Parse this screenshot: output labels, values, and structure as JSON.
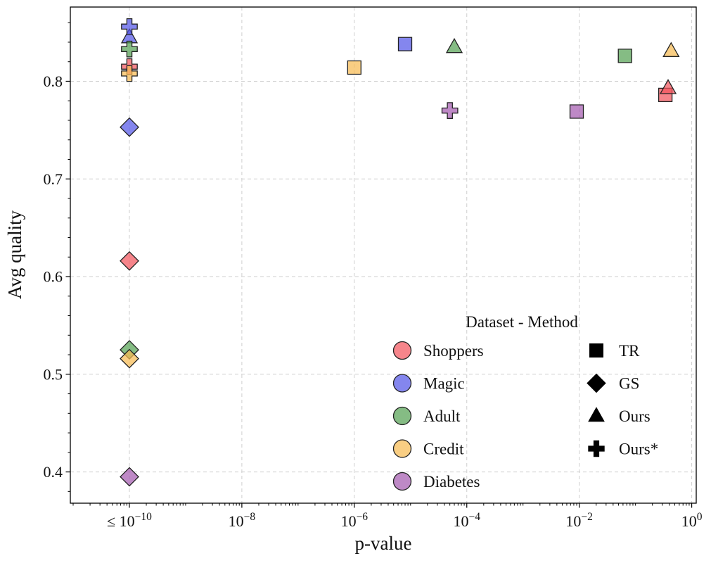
{
  "chart_data": {
    "type": "scatter",
    "title": "",
    "xlabel": "p-value",
    "ylabel": "Avg quality",
    "x_axis": {
      "scale": "log",
      "domain_log10": [
        -11.05,
        0.08
      ],
      "ticks": [
        {
          "log10": -10,
          "label": "≤ 10^−10"
        },
        {
          "log10": -8,
          "label": "10^−8"
        },
        {
          "log10": -6,
          "label": "10^−6"
        },
        {
          "log10": -4,
          "label": "10^−4"
        },
        {
          "log10": -2,
          "label": "10^−2"
        },
        {
          "log10": 0,
          "label": "10^0"
        }
      ]
    },
    "y_axis": {
      "domain": [
        0.368,
        0.876
      ],
      "ticks": [
        {
          "value": 0.4,
          "label": "0.4"
        },
        {
          "value": 0.5,
          "label": "0.5"
        },
        {
          "value": 0.6,
          "label": "0.6"
        },
        {
          "value": 0.7,
          "label": "0.7"
        },
        {
          "value": 0.8,
          "label": "0.8"
        }
      ]
    },
    "grid": {
      "show": true,
      "style": "dashed",
      "color": "#cfcfcf"
    },
    "marker_edge_color": "#222222",
    "marker_fill_opacity": 0.72,
    "datasets": [
      {
        "name": "Shoppers",
        "color": "#f2565e"
      },
      {
        "name": "Magic",
        "color": "#5457e8"
      },
      {
        "name": "Adult",
        "color": "#56a254"
      },
      {
        "name": "Credit",
        "color": "#f6bb53"
      },
      {
        "name": "Diabetes",
        "color": "#a55cb0"
      }
    ],
    "methods": [
      {
        "name": "TR",
        "marker": "square"
      },
      {
        "name": "GS",
        "marker": "diamond"
      },
      {
        "name": "Ours",
        "marker": "triangle"
      },
      {
        "name": "Ours*",
        "marker": "plus"
      }
    ],
    "points": [
      {
        "dataset": "Shoppers",
        "method": "GS",
        "p": 1e-10,
        "quality": 0.616
      },
      {
        "dataset": "Shoppers",
        "method": "TR",
        "p": 0.34,
        "quality": 0.786
      },
      {
        "dataset": "Shoppers",
        "method": "Ours",
        "p": 0.38,
        "quality": 0.793
      },
      {
        "dataset": "Shoppers",
        "method": "Ours*",
        "p": 1e-10,
        "quality": 0.815
      },
      {
        "dataset": "Magic",
        "method": "TR",
        "p": 8e-06,
        "quality": 0.838
      },
      {
        "dataset": "Magic",
        "method": "GS",
        "p": 1e-10,
        "quality": 0.753
      },
      {
        "dataset": "Magic",
        "method": "Ours",
        "p": 1e-10,
        "quality": 0.845
      },
      {
        "dataset": "Magic",
        "method": "Ours*",
        "p": 1e-10,
        "quality": 0.856
      },
      {
        "dataset": "Adult",
        "method": "TR",
        "p": 0.065,
        "quality": 0.826
      },
      {
        "dataset": "Adult",
        "method": "GS",
        "p": 1e-10,
        "quality": 0.525
      },
      {
        "dataset": "Adult",
        "method": "Ours",
        "p": 6e-05,
        "quality": 0.835
      },
      {
        "dataset": "Adult",
        "method": "Ours*",
        "p": 1e-10,
        "quality": 0.833
      },
      {
        "dataset": "Credit",
        "method": "TR",
        "p": 1e-06,
        "quality": 0.814
      },
      {
        "dataset": "Credit",
        "method": "GS",
        "p": 1e-10,
        "quality": 0.516
      },
      {
        "dataset": "Credit",
        "method": "Ours",
        "p": 0.43,
        "quality": 0.831
      },
      {
        "dataset": "Credit",
        "method": "Ours*",
        "p": 1e-10,
        "quality": 0.808
      },
      {
        "dataset": "Diabetes",
        "method": "TR",
        "p": 0.009,
        "quality": 0.769
      },
      {
        "dataset": "Diabetes",
        "method": "GS",
        "p": 1e-10,
        "quality": 0.395
      },
      {
        "dataset": "Diabetes",
        "method": "Ours*",
        "p": 5e-05,
        "quality": 0.77
      }
    ],
    "legend": {
      "title": "Dataset - Method",
      "position": "lower right"
    }
  }
}
